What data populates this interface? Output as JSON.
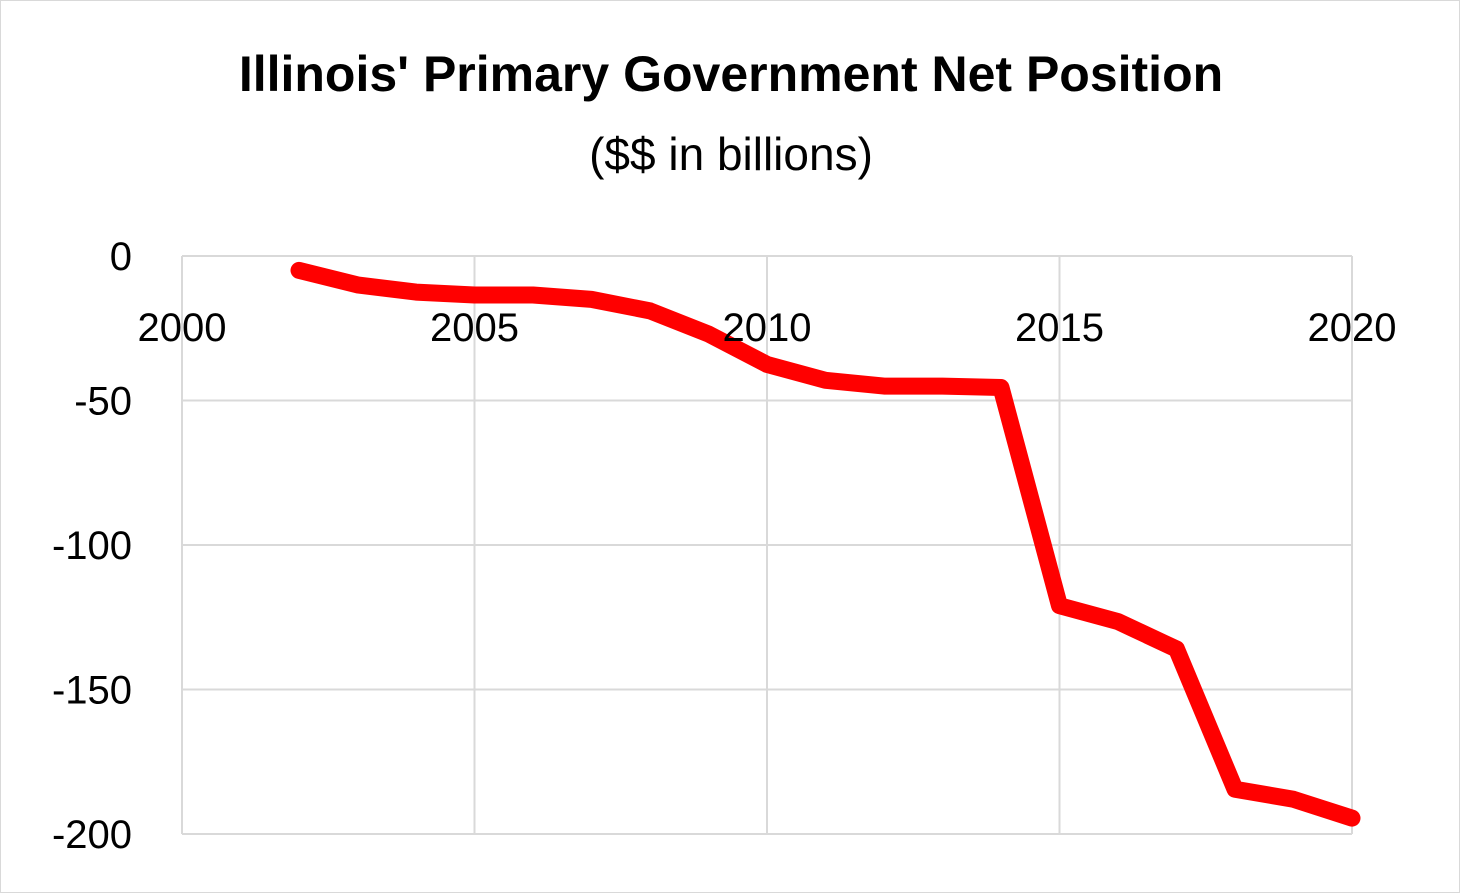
{
  "chart_data": {
    "type": "line",
    "title": "Illinois' Primary Government Net Position",
    "subtitle": "($$ in billions)",
    "xlabel": "",
    "ylabel": "",
    "xlim": [
      2000,
      2020
    ],
    "ylim": [
      -200,
      0
    ],
    "x_ticks": [
      2000,
      2005,
      2010,
      2015,
      2020
    ],
    "y_ticks": [
      0,
      -50,
      -100,
      -150,
      -200
    ],
    "grid": true,
    "legend": "none",
    "series": [
      {
        "color": "#ff0000",
        "x": [
          2002,
          2003,
          2004,
          2005,
          2006,
          2007,
          2008,
          2009,
          2010,
          2011,
          2012,
          2013,
          2014,
          2015,
          2016,
          2017,
          2018,
          2019,
          2020
        ],
        "y": [
          -5,
          -10,
          -12.5,
          -13.5,
          -13.5,
          -15,
          -19,
          -27,
          -37.5,
          -43,
          -45,
          -45,
          -45.5,
          -121,
          -126.5,
          -136,
          -184.5,
          -188,
          -194.5
        ]
      }
    ]
  }
}
